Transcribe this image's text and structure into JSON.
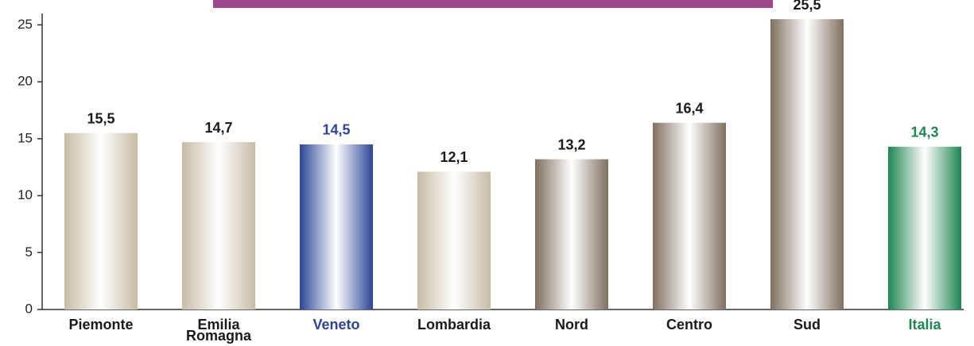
{
  "chart_data": {
    "type": "bar",
    "categories": [
      "Piemonte",
      "Emilia Romagna",
      "Veneto",
      "Lombardia",
      "Nord",
      "Centro",
      "Sud",
      "Italia"
    ],
    "values": [
      15.5,
      14.7,
      14.5,
      12.1,
      13.2,
      16.4,
      25.5,
      14.3
    ],
    "value_labels": [
      "15,5",
      "14,7",
      "14,5",
      "12,1",
      "13,2",
      "16,4",
      "25,5",
      "14,3"
    ],
    "colors": [
      "#c6bca4",
      "#c6bca4",
      "#2b4597",
      "#c6bca4",
      "#7f6f5f",
      "#7f6f5f",
      "#7f6f5f",
      "#1e8651"
    ],
    "label_colors": [
      "#1a1a1a",
      "#1a1a1a",
      "#2b4597",
      "#1a1a1a",
      "#1a1a1a",
      "#1a1a1a",
      "#1a1a1a",
      "#1e8651"
    ],
    "ylim": [
      0,
      26
    ],
    "yticks": [
      0,
      5,
      10,
      15,
      20,
      25
    ]
  }
}
